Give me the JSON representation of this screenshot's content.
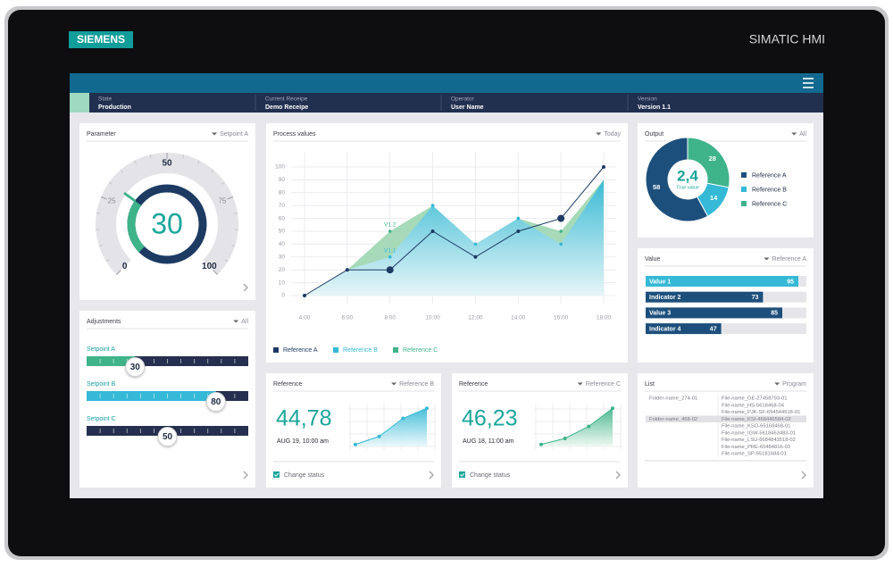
{
  "device": {
    "brand": "SIEMENS",
    "model": "SIMATIC HMI"
  },
  "status_bar": [
    {
      "label": "State",
      "value": "Production"
    },
    {
      "label": "Current Receipe",
      "value": "Demo Receipe"
    },
    {
      "label": "Operator",
      "value": "User Name"
    },
    {
      "label": "Version",
      "value": "Version 1.1"
    }
  ],
  "parameter": {
    "title": "Parameter",
    "filter": "Setpoint A",
    "value": 30,
    "scale": [
      0,
      25,
      50,
      75,
      100
    ]
  },
  "adjustments": {
    "title": "Adjustments",
    "filter": "All",
    "range": [
      0,
      100
    ],
    "sliders": [
      {
        "label": "Setpoint A",
        "value": 30,
        "color": "#3fb38a"
      },
      {
        "label": "Setpoint B",
        "value": 80,
        "color": "#35b9d6"
      },
      {
        "label": "Setpoint C",
        "value": 50,
        "color": "#262f4f"
      }
    ]
  },
  "process_values": {
    "title": "Process values",
    "filter": "Today",
    "chart": {
      "type": "area",
      "categories": [
        "4:00",
        "6:00",
        "8:00",
        "10:00",
        "12:00",
        "14:00",
        "16:00",
        "18:00"
      ],
      "ylim": [
        0,
        100
      ],
      "yticks": [
        0,
        10,
        20,
        30,
        40,
        50,
        60,
        70,
        80,
        90,
        100
      ],
      "grid": true,
      "annotations": [
        "V1.2",
        "V1.1"
      ],
      "series": [
        {
          "name": "Reference A",
          "color": "#1d3a63",
          "mark": "line",
          "values": [
            0,
            20,
            20,
            50,
            30,
            50,
            60,
            100
          ]
        },
        {
          "name": "Reference B",
          "color": "#35b9d6",
          "mark": "area",
          "values": [
            0,
            20,
            30,
            70,
            40,
            60,
            40,
            90
          ]
        },
        {
          "name": "Reference C",
          "color": "#3fb38a",
          "mark": "area",
          "values": [
            0,
            20,
            50,
            70,
            40,
            60,
            50,
            90
          ]
        }
      ]
    }
  },
  "output": {
    "title": "Output",
    "filter": "All",
    "chart": {
      "type": "donut",
      "center_value": "2,4",
      "center_label": "True value",
      "categories": [
        "Reference A",
        "Reference B",
        "Reference C"
      ],
      "values": [
        58,
        14,
        28
      ],
      "colors": [
        "#1d4f7c",
        "#35b9d6",
        "#3fb38a"
      ]
    }
  },
  "value_panel": {
    "title": "Value",
    "filter": "Reference A",
    "chart": {
      "type": "bar",
      "orientation": "horizontal",
      "categories": [
        "Value 1",
        "Indicator 2",
        "Value 3",
        "Indicator 4"
      ],
      "values": [
        95,
        73,
        85,
        47
      ],
      "colors": [
        "#35b9d6",
        "#1d4f7c",
        "#1d4f7c",
        "#1d4f7c"
      ],
      "xlim": [
        0,
        100
      ]
    }
  },
  "reference_cards": [
    {
      "title": "Reference",
      "filter": "Reference B",
      "value": "44,78",
      "timestamp": "AUG 19, 10:00 am",
      "checkbox": "Change status",
      "chart": {
        "type": "area",
        "values": [
          5,
          25,
          70,
          95
        ],
        "ylim": [
          0,
          100
        ],
        "color": "#35b9d6"
      }
    },
    {
      "title": "Reference",
      "filter": "Reference C",
      "value": "46,23",
      "timestamp": "AUG 18, 11:00 am",
      "checkbox": "Change status",
      "chart": {
        "type": "area",
        "values": [
          5,
          20,
          50,
          95
        ],
        "ylim": [
          0,
          100
        ],
        "color": "#3fb38a"
      }
    }
  ],
  "list": {
    "title": "List",
    "filter": "Program",
    "folders": [
      {
        "name": "Folder-name_274-01",
        "files": [
          "File-name_GE-27458793-01",
          "File-name_HS-5618468-04",
          "File-name_PJK-SF-694544618-01"
        ]
      },
      {
        "name": "Folder-name_468-02",
        "files": [
          "File-name_KSI-468446584-02",
          "File-name_KSO-65168468-01",
          "File-name_IGW-5618463483-01",
          "File-name_LSU-6684843518-02",
          "File-name_PRE-65484816-03",
          "File-name_SP-65181684-01"
        ]
      }
    ]
  }
}
